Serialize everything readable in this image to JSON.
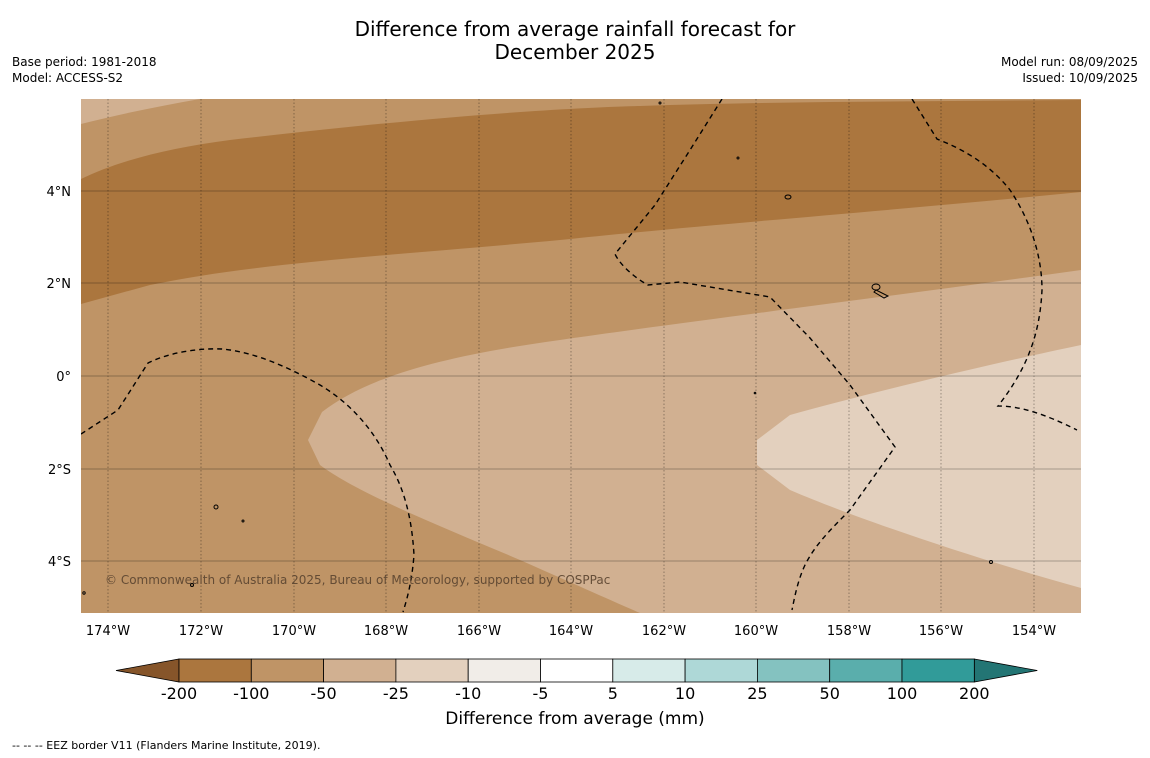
{
  "title_line1": "Difference from average rainfall forecast for",
  "title_line2": "December 2025",
  "base_period": "Base period: 1981-2018",
  "model": "Model: ACCESS-S2",
  "model_run": "Model run: 08/09/2025",
  "issued": "Issued: 10/09/2025",
  "copyright": "© Commonwealth of Australia 2025, Bureau of Meteorology, supported by COSPPac",
  "lon_labels": [
    "174°W",
    "172°W",
    "170°W",
    "168°W",
    "166°W",
    "164°W",
    "162°W",
    "160°W",
    "158°W",
    "156°W",
    "154°W"
  ],
  "lat_labels": [
    "4°N",
    "2°N",
    "0°",
    "2°S",
    "4°S"
  ],
  "colorbar": {
    "title": "Difference from average (mm)",
    "tick_labels": [
      "-200",
      "-100",
      "-50",
      "-25",
      "-10",
      "-5",
      "5",
      "10",
      "25",
      "50",
      "100",
      "200"
    ],
    "colors": [
      "#ab763e",
      "#bf9466",
      "#d1b091",
      "#e3d0be",
      "#f1ede8",
      "#ffffff",
      "#d7ebe9",
      "#aed8d7",
      "#84c2c0",
      "#5aaeac",
      "#319b99"
    ],
    "under_color": "#86552a",
    "over_color": "#237574"
  },
  "footer_note": "--  --  -- EEZ border V11 (Flanders Marine Institute, 2019)."
}
